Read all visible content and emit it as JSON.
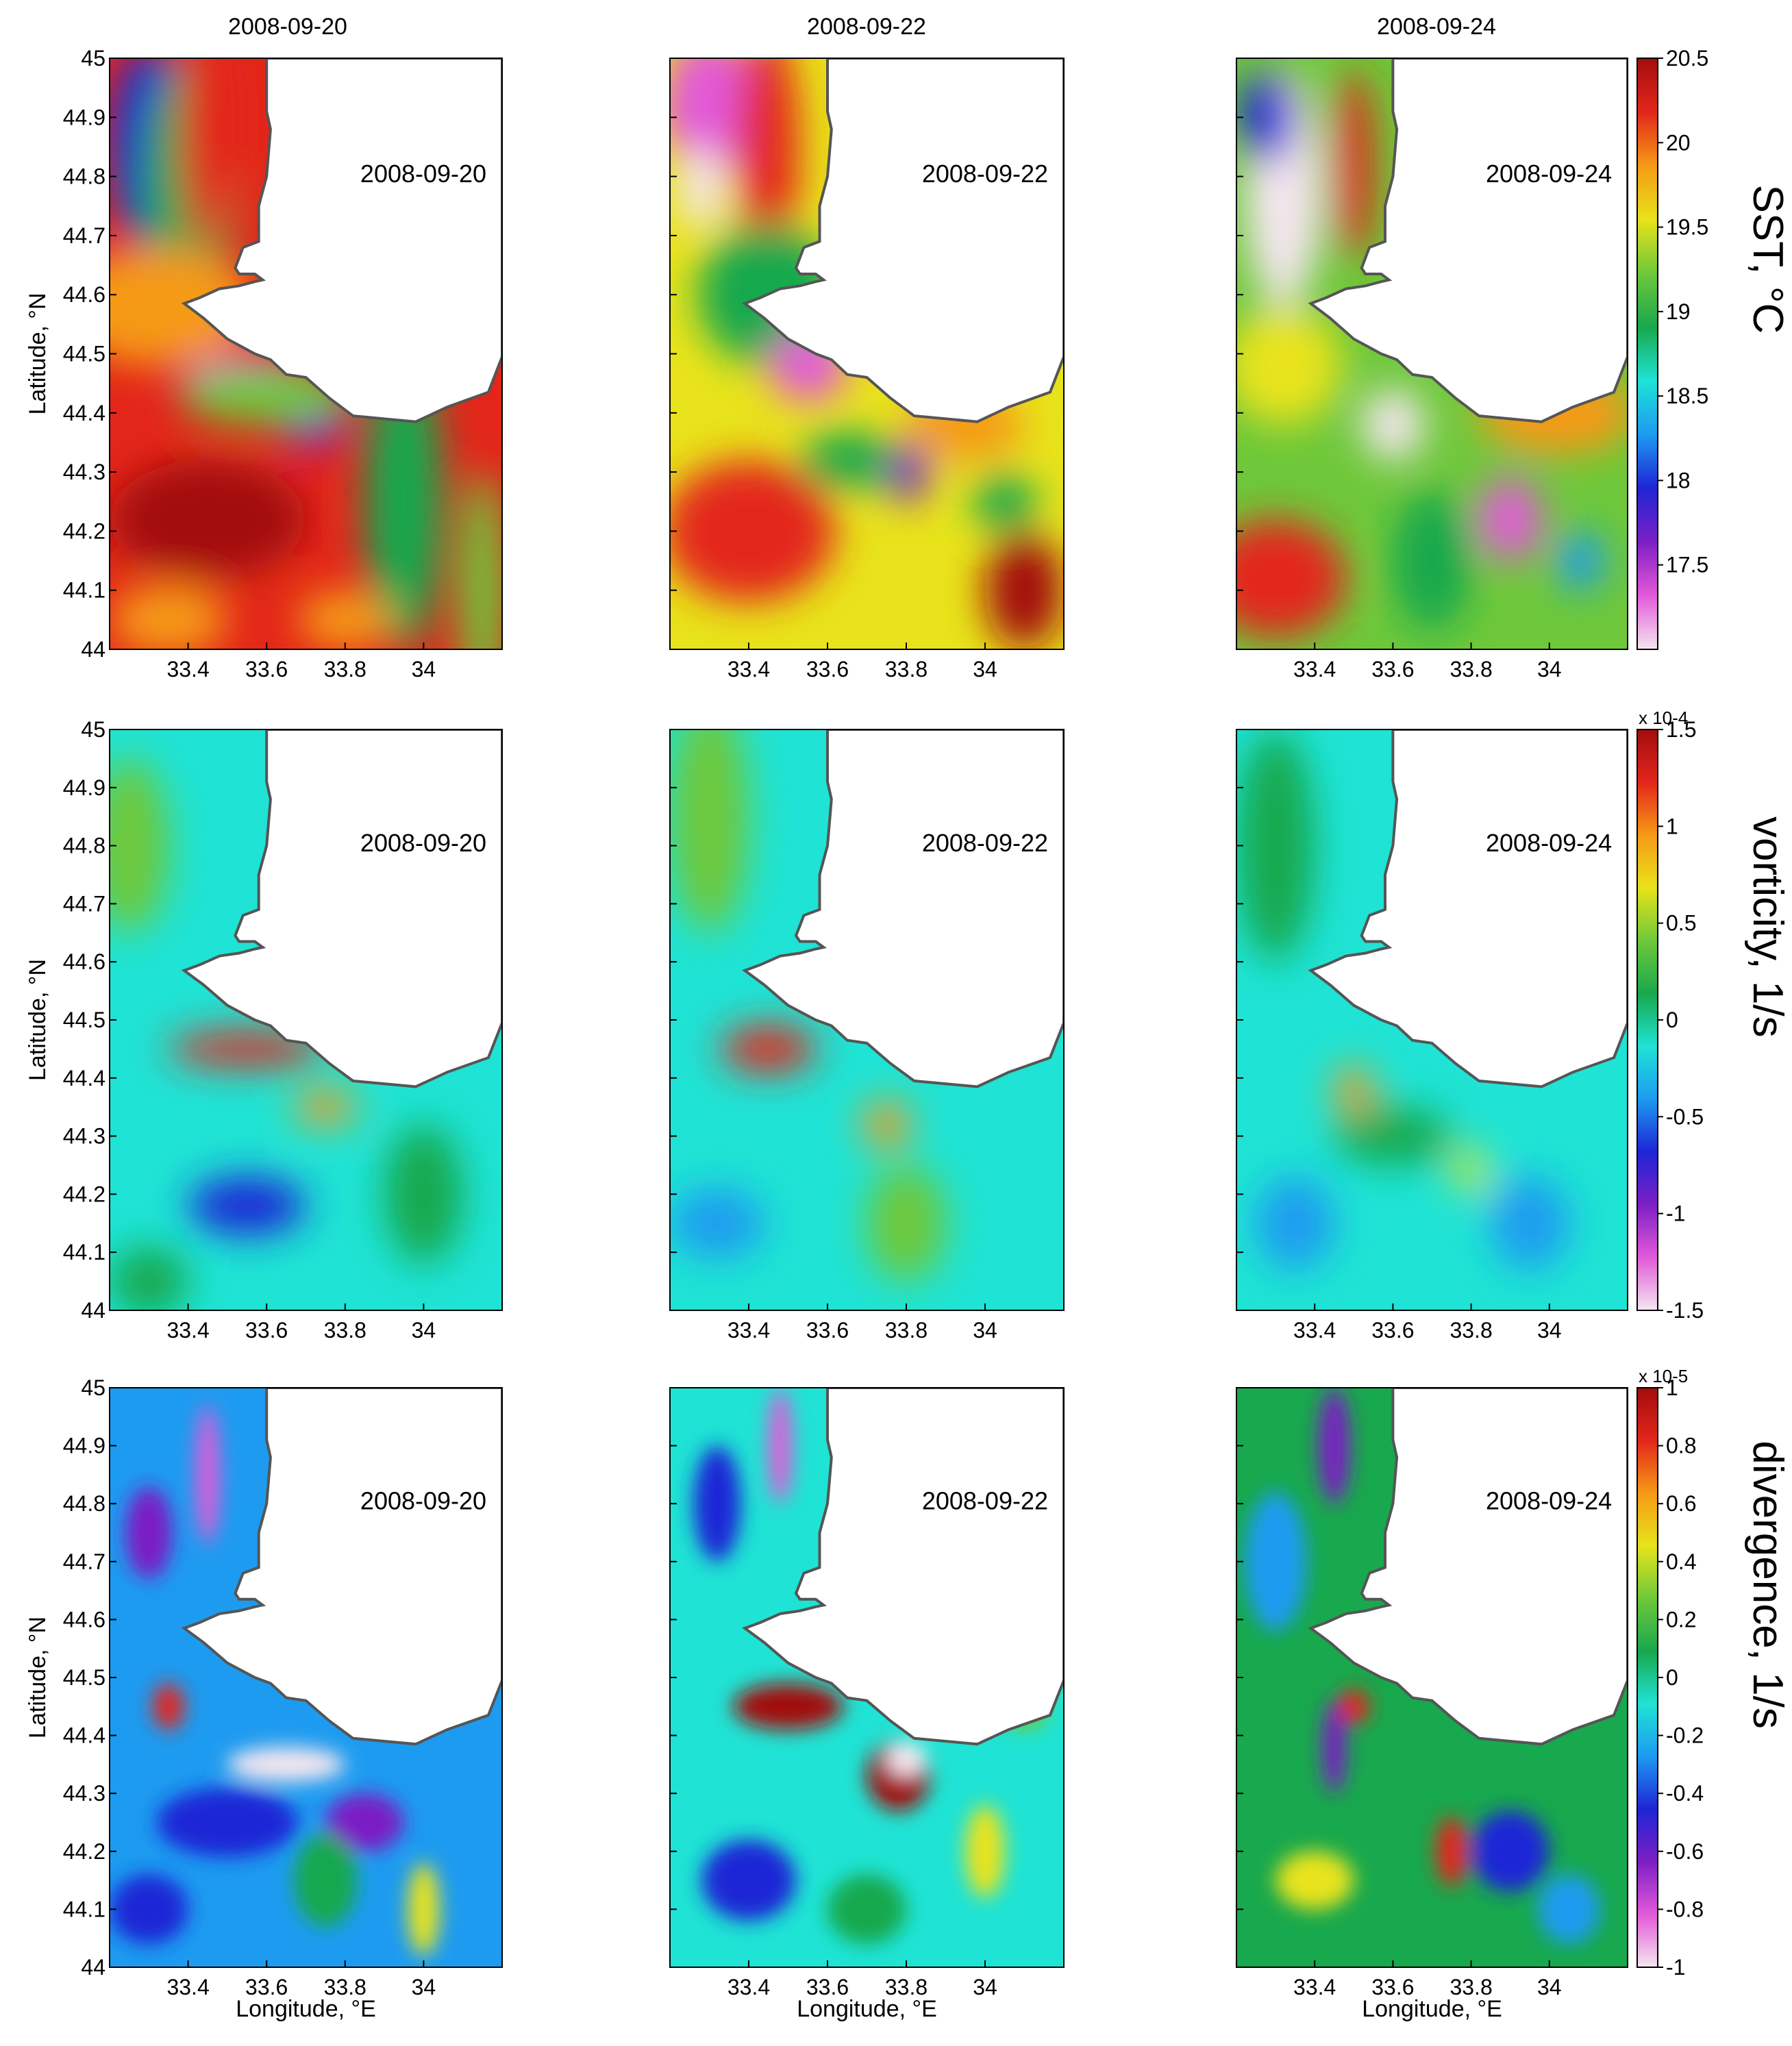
{
  "figure": {
    "column_titles": [
      "2008-09-20",
      "2008-09-22",
      "2008-09-24"
    ]
  },
  "chart_data": [
    {
      "type": "heatmap",
      "row": "sst",
      "panels": [
        "2008-09-20",
        "2008-09-22",
        "2008-09-24"
      ],
      "ylabel": "Latitude, °N",
      "xlabel": "",
      "xlim": [
        33.2,
        34.2
      ],
      "ylim": [
        44,
        45
      ],
      "xticks": [
        "33.4",
        "33.6",
        "33.8",
        "34"
      ],
      "yticks": [
        "44",
        "44.1",
        "44.2",
        "44.3",
        "44.4",
        "44.5",
        "44.6",
        "44.7",
        "44.8",
        "44.9",
        "45"
      ],
      "colorbar": {
        "title": "SST, °C",
        "multiplier": "",
        "range": [
          17.0,
          20.5
        ],
        "ticks": [
          "17.5",
          "18",
          "18.5",
          "19",
          "19.5",
          "20",
          "20.5"
        ],
        "tick_values": [
          17.5,
          18,
          18.5,
          19,
          19.5,
          20,
          20.5
        ]
      }
    },
    {
      "type": "heatmap",
      "row": "vorticity",
      "panels": [
        "2008-09-20",
        "2008-09-22",
        "2008-09-24"
      ],
      "ylabel": "Latitude, °N",
      "xlabel": "",
      "xlim": [
        33.2,
        34.2
      ],
      "ylim": [
        44,
        45
      ],
      "xticks": [
        "33.4",
        "33.6",
        "33.8",
        "34"
      ],
      "yticks": [
        "44",
        "44.1",
        "44.2",
        "44.3",
        "44.4",
        "44.5",
        "44.6",
        "44.7",
        "44.8",
        "44.9",
        "45"
      ],
      "colorbar": {
        "title": "vorticity, 1/s",
        "multiplier": "x 10-4",
        "range": [
          -1.5,
          1.5
        ],
        "ticks": [
          "-1.5",
          "-1",
          "-0.5",
          "0",
          "0.5",
          "1",
          "1.5"
        ],
        "tick_values": [
          -1.5,
          -1,
          -0.5,
          0,
          0.5,
          1,
          1.5
        ]
      }
    },
    {
      "type": "heatmap",
      "row": "divergence",
      "panels": [
        "2008-09-20",
        "2008-09-22",
        "2008-09-24"
      ],
      "ylabel": "Latitude, °N",
      "xlabel": "Longitude, °E",
      "xlim": [
        33.2,
        34.2
      ],
      "ylim": [
        44,
        45
      ],
      "xticks": [
        "33.4",
        "33.6",
        "33.8",
        "34"
      ],
      "yticks": [
        "44",
        "44.1",
        "44.2",
        "44.3",
        "44.4",
        "44.5",
        "44.6",
        "44.7",
        "44.8",
        "44.9",
        "45"
      ],
      "colorbar": {
        "title": "divergence, 1/s",
        "multiplier": "x 10-5",
        "range": [
          -1,
          1
        ],
        "ticks": [
          "-1",
          "-0.8",
          "-0.6",
          "-0.4",
          "-0.2",
          "0",
          "0.2",
          "0.4",
          "0.6",
          "0.8",
          "1"
        ],
        "tick_values": [
          -1,
          -0.8,
          -0.6,
          -0.4,
          -0.2,
          0,
          0.2,
          0.4,
          0.6,
          0.8,
          1
        ]
      }
    }
  ],
  "colors": {
    "land": "#ffffff",
    "coast": "#555555",
    "colormap": [
      "#f4e6ef",
      "#e25ad8",
      "#7c1fc4",
      "#1f25d6",
      "#1d9bf0",
      "#1fe3d4",
      "#18a84d",
      "#6ec83a",
      "#e8e31a",
      "#f59a16",
      "#e3261a",
      "#a30d0d"
    ]
  }
}
